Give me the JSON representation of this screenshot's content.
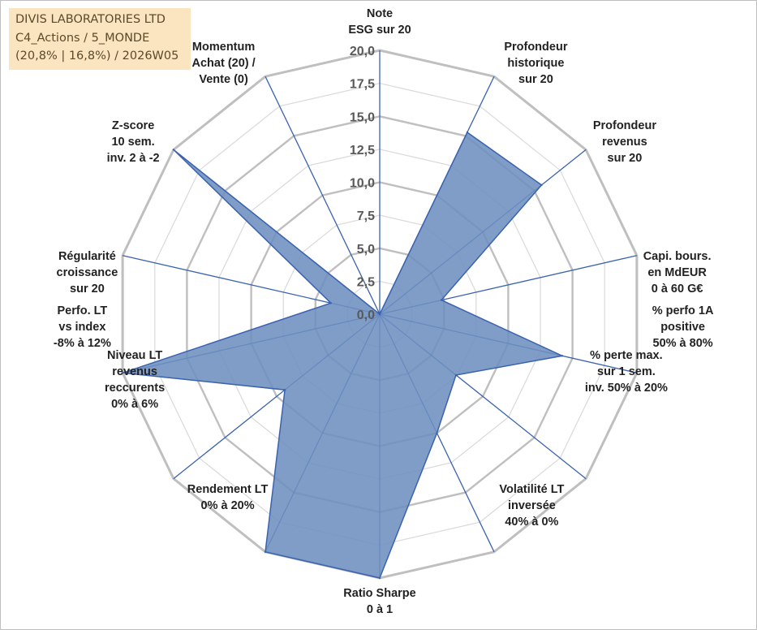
{
  "title": {
    "lines": [
      "DIVIS LABORATORIES LTD",
      "C4_Actions / 5_MONDE",
      "(20,8% | 16,8%) / 2026W05"
    ]
  },
  "chart_data": {
    "type": "radar",
    "rmin": 0,
    "rmax": 20,
    "tick_step": 2.5,
    "tick_labels": [
      "0,0",
      "2,5",
      "5,0",
      "7,5",
      "10,0",
      "12,5",
      "15,0",
      "17,5",
      "20,0"
    ],
    "grid": true,
    "fill_color": "#6d8fbf",
    "line_color": "#3a62b0",
    "grid_color": "#bfbfbf",
    "ring_minor_color": "#d9d9d9",
    "axes": [
      {
        "label": [
          "Note",
          "ESG sur 20"
        ],
        "value": 0
      },
      {
        "label": [
          "Profondeur",
          "historique",
          "sur 20"
        ],
        "value": 15.3
      },
      {
        "label": [
          "Profondeur",
          "revenus",
          "sur 20"
        ],
        "value": 15.7
      },
      {
        "label": [
          "Capi. bours.",
          "en MdEUR",
          "0 à 60 G€"
        ],
        "value": 4.8
      },
      {
        "label": [
          "% perfo 1A",
          "positive",
          "50% à 80%"
        ],
        "value": 14.2
      },
      {
        "label": [
          "% perte max.",
          "sur 1 sem.",
          "inv. 50% à 20%"
        ],
        "value": 7.4
      },
      {
        "label": [
          "Volatilité LT",
          "inversée",
          "40% à 0%"
        ],
        "value": 10.0
      },
      {
        "label": [
          "Ratio Sharpe",
          "0 à 1"
        ],
        "value": 20
      },
      {
        "label": [
          "Rendement LT",
          "0% à 20%"
        ],
        "value": 20
      },
      {
        "label": [
          "Niveau LT",
          "revenus",
          "reccurents",
          "0% à 6%"
        ],
        "value": 9.2
      },
      {
        "label": [
          "Perfo. LT",
          "vs index",
          "-8% à 12%"
        ],
        "value": 20
      },
      {
        "label": [
          "Régularité",
          "croissance",
          "sur 20"
        ],
        "value": 3.8
      },
      {
        "label": [
          "Z-score",
          "10 sem.",
          "inv. 2 à -2"
        ],
        "value": 20
      },
      {
        "label": [
          "Momentum",
          "Achat (20) /",
          "Vente (0)"
        ],
        "value": 0
      }
    ]
  }
}
